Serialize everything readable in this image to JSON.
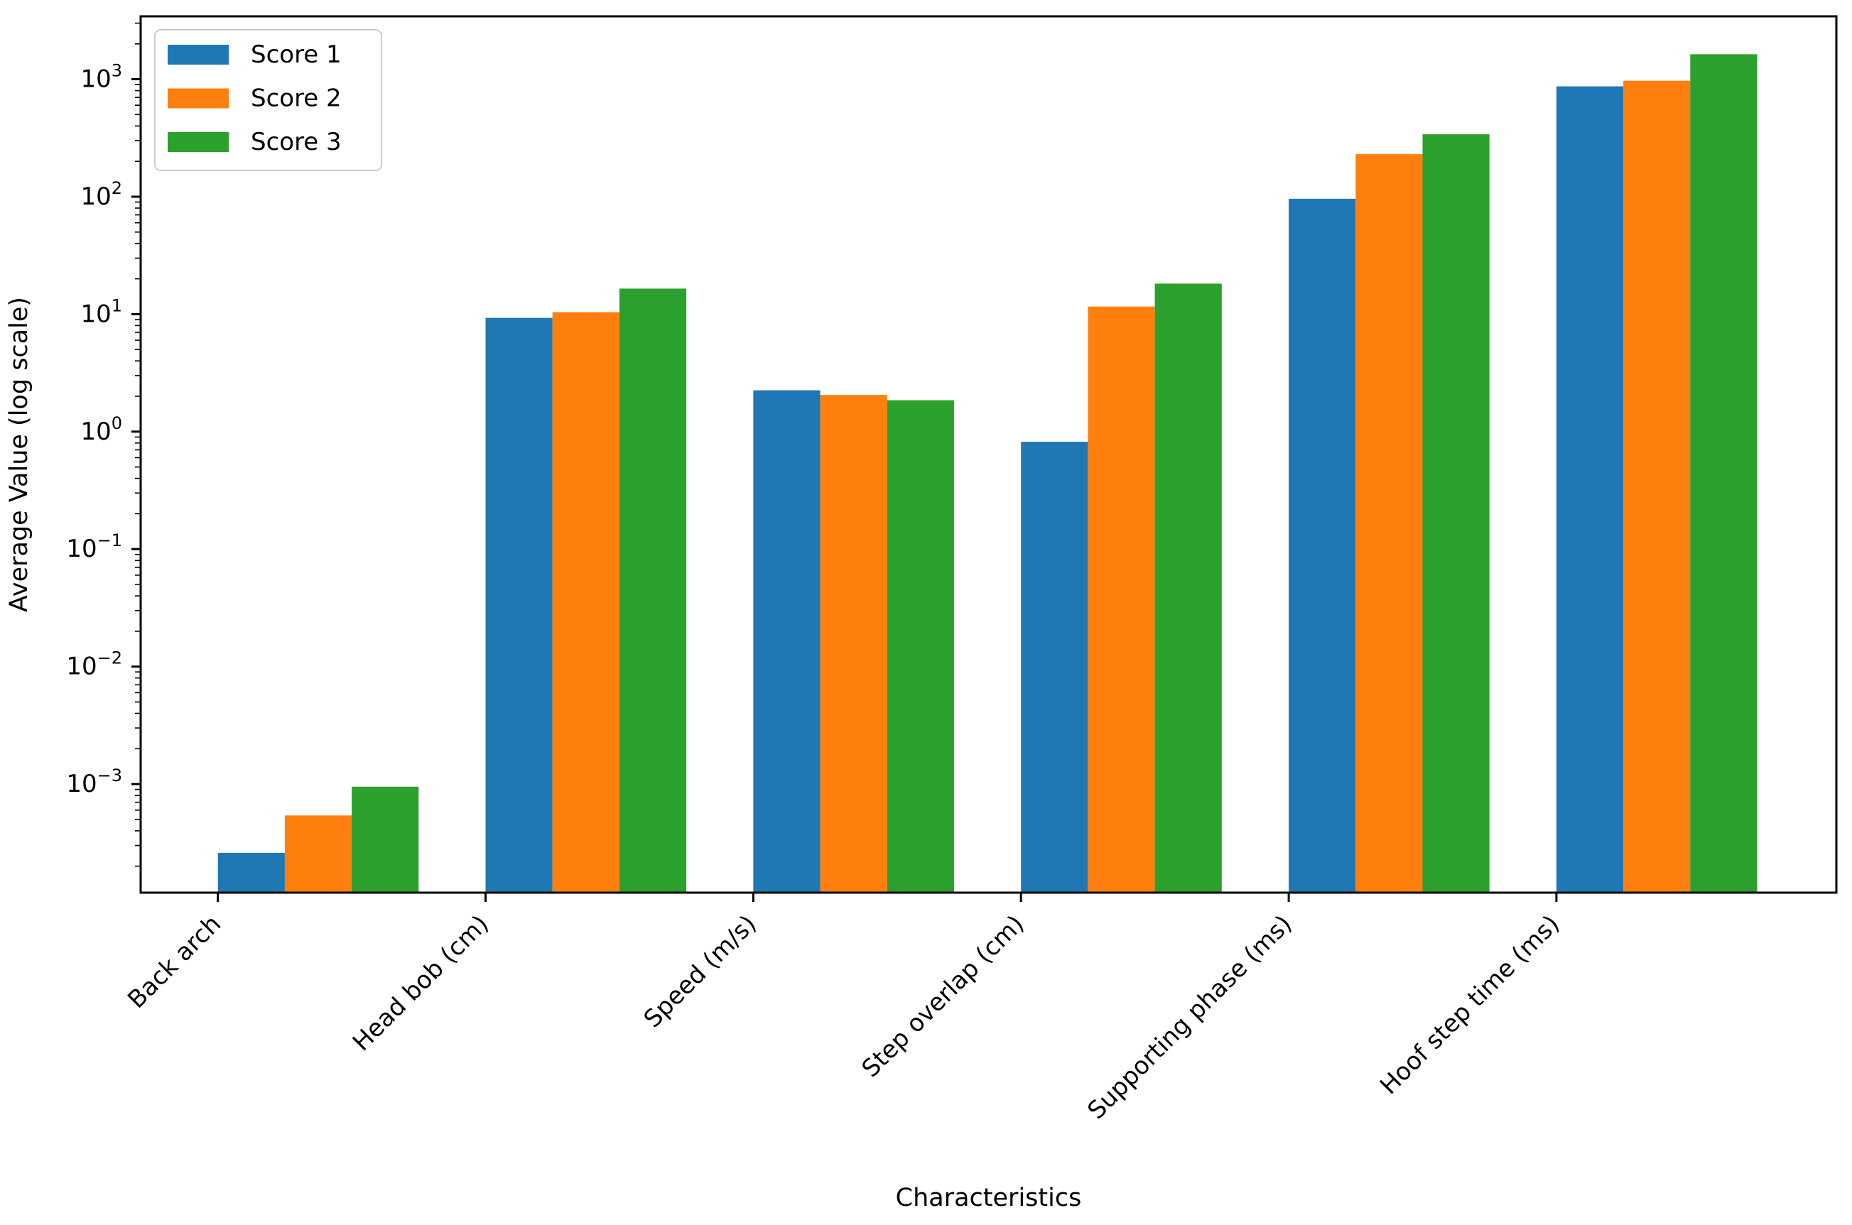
{
  "chart_data": {
    "type": "bar",
    "title": "",
    "xlabel": "Characteristics",
    "ylabel": "Average Value (log scale)",
    "yscale": "log",
    "ylim": [
      0.000119,
      3430
    ],
    "grid": false,
    "legend": {
      "position": "upper left",
      "entries": [
        "Score 1",
        "Score 2",
        "Score 3"
      ]
    },
    "categories": [
      "Back arch",
      "Head bob (cm)",
      "Speed (m/s)",
      "Step overlap (cm)",
      "Supporting phase (ms)",
      "Hoof step time (ms)"
    ],
    "series": [
      {
        "name": "Score 1",
        "color": "#1f77b4",
        "values": [
          0.00026,
          9.3,
          2.25,
          0.82,
          96,
          870
        ]
      },
      {
        "name": "Score 2",
        "color": "#ff7f0e",
        "values": [
          0.00054,
          10.4,
          2.05,
          11.6,
          230,
          970
        ]
      },
      {
        "name": "Score 3",
        "color": "#2ca02c",
        "values": [
          0.00095,
          16.5,
          1.85,
          18.2,
          340,
          1630
        ]
      }
    ],
    "y_tick_labels": [
      "10^3",
      "10^2",
      "10^1",
      "10^0",
      "10^-1",
      "10^-2",
      "10^-3"
    ],
    "axis_color": "#000000",
    "legend_border_color": "#cccccc"
  }
}
